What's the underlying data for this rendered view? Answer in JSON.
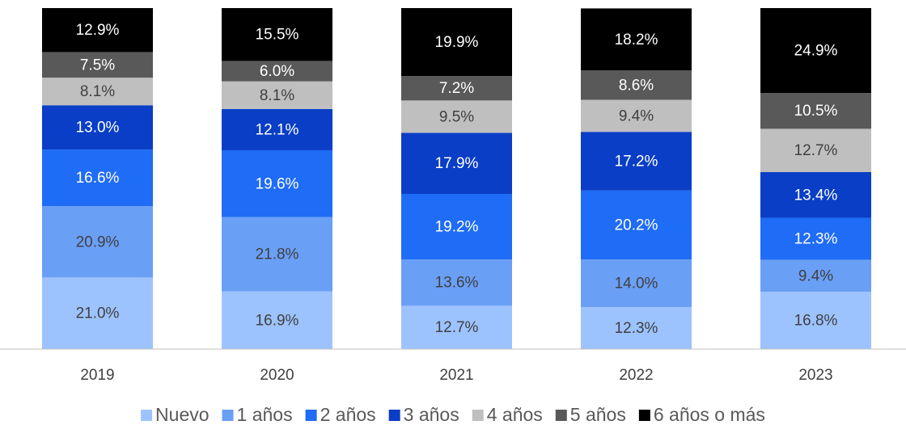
{
  "chart_data": {
    "type": "stacked_bar",
    "categories": [
      "2019",
      "2020",
      "2021",
      "2022",
      "2023"
    ],
    "ylim": [
      0,
      100
    ],
    "series": [
      {
        "name": "Nuevo",
        "color": "#9dc3ff",
        "values": [
          21.0,
          16.9,
          12.7,
          12.3,
          16.8
        ],
        "value_labels": [
          "21.0%",
          "16.9%",
          "12.7%",
          "12.3%",
          "16.8%"
        ]
      },
      {
        "name": "1 años",
        "color": "#6a9ff6",
        "values": [
          20.9,
          21.8,
          13.6,
          14.0,
          9.4
        ],
        "value_labels": [
          "20.9%",
          "21.8%",
          "13.6%",
          "14.0%",
          "9.4%"
        ]
      },
      {
        "name": "2 años",
        "color": "#1f6cf6",
        "values": [
          16.6,
          19.6,
          19.2,
          20.2,
          12.3
        ],
        "value_labels": [
          "16.6%",
          "19.6%",
          "19.2%",
          "20.2%",
          "12.3%"
        ]
      },
      {
        "name": "3 años",
        "color": "#0a3ec6",
        "values": [
          13.0,
          12.1,
          17.9,
          17.2,
          13.4
        ],
        "value_labels": [
          "13.0%",
          "12.1%",
          "17.9%",
          "17.2%",
          "13.4%"
        ]
      },
      {
        "name": "4 años",
        "color": "#bfbfbf",
        "values": [
          8.1,
          8.1,
          9.5,
          9.4,
          12.7
        ],
        "value_labels": [
          "8.1%",
          "8.1%",
          "9.5%",
          "9.4%",
          "12.7%"
        ]
      },
      {
        "name": "5 años",
        "color": "#595959",
        "values": [
          7.5,
          6.0,
          7.2,
          8.6,
          10.5
        ],
        "value_labels": [
          "7.5%",
          "6.0%",
          "7.2%",
          "8.6%",
          "10.5%"
        ]
      },
      {
        "name": "6 años o más",
        "color": "#000000",
        "values": [
          12.9,
          15.5,
          19.9,
          18.2,
          24.9
        ],
        "value_labels": [
          "12.9%",
          "15.5%",
          "19.9%",
          "18.2%",
          "24.9%"
        ]
      }
    ]
  }
}
